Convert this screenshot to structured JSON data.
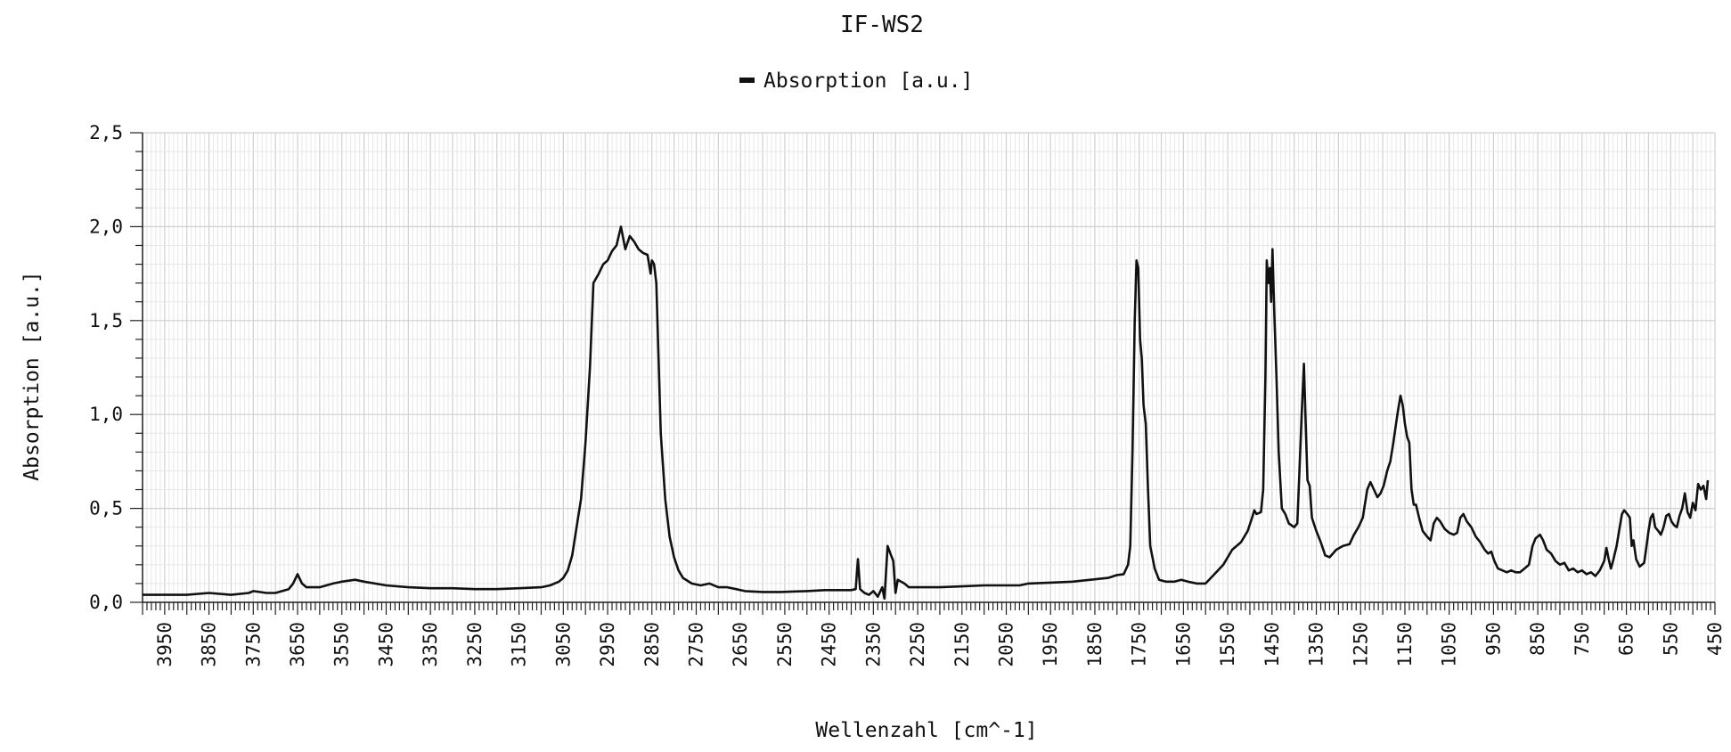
{
  "chart_data": {
    "type": "line",
    "title": "IF-WS2",
    "xlabel": "Wellenzahl [cm^-1]",
    "ylabel": "Absorption [a.u.]",
    "legend": {
      "position": "top-center",
      "entries": [
        "Absorption [a.u.]"
      ]
    },
    "x_reversed": true,
    "xlim": [
      4000,
      450
    ],
    "ylim": [
      0,
      2.5
    ],
    "grid": true,
    "x_ticks": [
      "3950",
      "3850",
      "3750",
      "3650",
      "3550",
      "3450",
      "3350",
      "3250",
      "3150",
      "3050",
      "2950",
      "2850",
      "2750",
      "2650",
      "2550",
      "2450",
      "2350",
      "2250",
      "2150",
      "2050",
      "1950",
      "1850",
      "1750",
      "1650",
      "1550",
      "1450",
      "1350",
      "1250",
      "1150",
      "1050",
      "950",
      "850",
      "750",
      "650",
      "550",
      "450"
    ],
    "y_ticks": [
      "0,0",
      "0,5",
      "1,0",
      "1,5",
      "2,0",
      "2,5"
    ],
    "series": [
      {
        "name": "Absorption [a.u.]",
        "color": "#111111",
        "points": [
          [
            4000,
            0.04
          ],
          [
            3950,
            0.04
          ],
          [
            3900,
            0.04
          ],
          [
            3850,
            0.05
          ],
          [
            3800,
            0.04
          ],
          [
            3760,
            0.05
          ],
          [
            3750,
            0.06
          ],
          [
            3720,
            0.05
          ],
          [
            3700,
            0.05
          ],
          [
            3670,
            0.07
          ],
          [
            3660,
            0.1
          ],
          [
            3650,
            0.15
          ],
          [
            3640,
            0.1
          ],
          [
            3630,
            0.08
          ],
          [
            3600,
            0.08
          ],
          [
            3570,
            0.1
          ],
          [
            3550,
            0.11
          ],
          [
            3520,
            0.12
          ],
          [
            3500,
            0.11
          ],
          [
            3450,
            0.09
          ],
          [
            3400,
            0.08
          ],
          [
            3350,
            0.075
          ],
          [
            3300,
            0.075
          ],
          [
            3250,
            0.07
          ],
          [
            3200,
            0.07
          ],
          [
            3150,
            0.075
          ],
          [
            3100,
            0.08
          ],
          [
            3080,
            0.09
          ],
          [
            3060,
            0.11
          ],
          [
            3050,
            0.13
          ],
          [
            3040,
            0.17
          ],
          [
            3030,
            0.25
          ],
          [
            3020,
            0.4
          ],
          [
            3010,
            0.55
          ],
          [
            3000,
            0.85
          ],
          [
            2990,
            1.25
          ],
          [
            2982,
            1.7
          ],
          [
            2970,
            1.75
          ],
          [
            2960,
            1.8
          ],
          [
            2950,
            1.82
          ],
          [
            2940,
            1.87
          ],
          [
            2930,
            1.9
          ],
          [
            2920,
            2.0
          ],
          [
            2910,
            1.88
          ],
          [
            2900,
            1.95
          ],
          [
            2890,
            1.92
          ],
          [
            2880,
            1.88
          ],
          [
            2870,
            1.86
          ],
          [
            2860,
            1.85
          ],
          [
            2853,
            1.75
          ],
          [
            2850,
            1.82
          ],
          [
            2845,
            1.8
          ],
          [
            2840,
            1.7
          ],
          [
            2835,
            1.3
          ],
          [
            2830,
            0.9
          ],
          [
            2820,
            0.55
          ],
          [
            2810,
            0.35
          ],
          [
            2800,
            0.24
          ],
          [
            2790,
            0.17
          ],
          [
            2780,
            0.13
          ],
          [
            2760,
            0.1
          ],
          [
            2740,
            0.09
          ],
          [
            2720,
            0.1
          ],
          [
            2700,
            0.08
          ],
          [
            2680,
            0.08
          ],
          [
            2660,
            0.07
          ],
          [
            2640,
            0.06
          ],
          [
            2600,
            0.055
          ],
          [
            2560,
            0.055
          ],
          [
            2500,
            0.06
          ],
          [
            2460,
            0.065
          ],
          [
            2420,
            0.065
          ],
          [
            2400,
            0.065
          ],
          [
            2390,
            0.07
          ],
          [
            2385,
            0.23
          ],
          [
            2380,
            0.07
          ],
          [
            2370,
            0.05
          ],
          [
            2360,
            0.04
          ],
          [
            2350,
            0.06
          ],
          [
            2340,
            0.03
          ],
          [
            2330,
            0.08
          ],
          [
            2325,
            0.02
          ],
          [
            2318,
            0.3
          ],
          [
            2310,
            0.25
          ],
          [
            2305,
            0.22
          ],
          [
            2300,
            0.05
          ],
          [
            2295,
            0.12
          ],
          [
            2280,
            0.1
          ],
          [
            2270,
            0.08
          ],
          [
            2250,
            0.08
          ],
          [
            2200,
            0.08
          ],
          [
            2150,
            0.085
          ],
          [
            2100,
            0.09
          ],
          [
            2050,
            0.09
          ],
          [
            2020,
            0.09
          ],
          [
            2000,
            0.1
          ],
          [
            1950,
            0.105
          ],
          [
            1900,
            0.11
          ],
          [
            1860,
            0.12
          ],
          [
            1820,
            0.13
          ],
          [
            1800,
            0.145
          ],
          [
            1785,
            0.15
          ],
          [
            1775,
            0.2
          ],
          [
            1770,
            0.3
          ],
          [
            1765,
            0.8
          ],
          [
            1760,
            1.5
          ],
          [
            1756,
            1.82
          ],
          [
            1752,
            1.78
          ],
          [
            1748,
            1.4
          ],
          [
            1744,
            1.3
          ],
          [
            1740,
            1.05
          ],
          [
            1735,
            0.95
          ],
          [
            1730,
            0.6
          ],
          [
            1725,
            0.3
          ],
          [
            1715,
            0.18
          ],
          [
            1705,
            0.12
          ],
          [
            1690,
            0.11
          ],
          [
            1670,
            0.11
          ],
          [
            1655,
            0.12
          ],
          [
            1640,
            0.11
          ],
          [
            1620,
            0.1
          ],
          [
            1600,
            0.1
          ],
          [
            1580,
            0.15
          ],
          [
            1560,
            0.2
          ],
          [
            1540,
            0.28
          ],
          [
            1520,
            0.32
          ],
          [
            1505,
            0.38
          ],
          [
            1495,
            0.45
          ],
          [
            1490,
            0.49
          ],
          [
            1485,
            0.47
          ],
          [
            1475,
            0.48
          ],
          [
            1470,
            0.6
          ],
          [
            1465,
            1.2
          ],
          [
            1462,
            1.82
          ],
          [
            1458,
            1.7
          ],
          [
            1455,
            1.78
          ],
          [
            1452,
            1.6
          ],
          [
            1449,
            1.88
          ],
          [
            1445,
            1.55
          ],
          [
            1440,
            1.2
          ],
          [
            1435,
            0.8
          ],
          [
            1428,
            0.5
          ],
          [
            1420,
            0.47
          ],
          [
            1412,
            0.42
          ],
          [
            1400,
            0.4
          ],
          [
            1393,
            0.42
          ],
          [
            1388,
            0.7
          ],
          [
            1383,
            1.0
          ],
          [
            1378,
            1.27
          ],
          [
            1374,
            0.95
          ],
          [
            1370,
            0.65
          ],
          [
            1365,
            0.62
          ],
          [
            1360,
            0.45
          ],
          [
            1350,
            0.38
          ],
          [
            1340,
            0.32
          ],
          [
            1330,
            0.25
          ],
          [
            1320,
            0.24
          ],
          [
            1305,
            0.28
          ],
          [
            1290,
            0.3
          ],
          [
            1275,
            0.31
          ],
          [
            1265,
            0.36
          ],
          [
            1255,
            0.4
          ],
          [
            1245,
            0.45
          ],
          [
            1235,
            0.6
          ],
          [
            1228,
            0.64
          ],
          [
            1220,
            0.6
          ],
          [
            1212,
            0.56
          ],
          [
            1205,
            0.58
          ],
          [
            1198,
            0.62
          ],
          [
            1190,
            0.7
          ],
          [
            1183,
            0.75
          ],
          [
            1176,
            0.85
          ],
          [
            1170,
            0.95
          ],
          [
            1165,
            1.03
          ],
          [
            1160,
            1.1
          ],
          [
            1155,
            1.05
          ],
          [
            1150,
            0.95
          ],
          [
            1145,
            0.88
          ],
          [
            1140,
            0.85
          ],
          [
            1135,
            0.6
          ],
          [
            1130,
            0.52
          ],
          [
            1125,
            0.52
          ],
          [
            1118,
            0.45
          ],
          [
            1110,
            0.38
          ],
          [
            1100,
            0.35
          ],
          [
            1092,
            0.33
          ],
          [
            1085,
            0.42
          ],
          [
            1078,
            0.45
          ],
          [
            1070,
            0.43
          ],
          [
            1060,
            0.39
          ],
          [
            1050,
            0.37
          ],
          [
            1040,
            0.36
          ],
          [
            1032,
            0.37
          ],
          [
            1025,
            0.45
          ],
          [
            1018,
            0.47
          ],
          [
            1010,
            0.43
          ],
          [
            1000,
            0.4
          ],
          [
            990,
            0.35
          ],
          [
            980,
            0.32
          ],
          [
            970,
            0.28
          ],
          [
            962,
            0.26
          ],
          [
            955,
            0.27
          ],
          [
            948,
            0.22
          ],
          [
            940,
            0.18
          ],
          [
            930,
            0.17
          ],
          [
            920,
            0.16
          ],
          [
            910,
            0.17
          ],
          [
            900,
            0.16
          ],
          [
            890,
            0.16
          ],
          [
            880,
            0.18
          ],
          [
            870,
            0.2
          ],
          [
            862,
            0.3
          ],
          [
            855,
            0.34
          ],
          [
            845,
            0.36
          ],
          [
            838,
            0.33
          ],
          [
            830,
            0.28
          ],
          [
            820,
            0.26
          ],
          [
            810,
            0.22
          ],
          [
            800,
            0.2
          ],
          [
            790,
            0.21
          ],
          [
            780,
            0.17
          ],
          [
            770,
            0.18
          ],
          [
            760,
            0.16
          ],
          [
            750,
            0.17
          ],
          [
            740,
            0.15
          ],
          [
            730,
            0.16
          ],
          [
            720,
            0.14
          ],
          [
            710,
            0.17
          ],
          [
            700,
            0.22
          ],
          [
            695,
            0.29
          ],
          [
            690,
            0.23
          ],
          [
            685,
            0.18
          ],
          [
            680,
            0.22
          ],
          [
            672,
            0.3
          ],
          [
            665,
            0.4
          ],
          [
            660,
            0.47
          ],
          [
            655,
            0.49
          ],
          [
            648,
            0.47
          ],
          [
            642,
            0.45
          ],
          [
            638,
            0.3
          ],
          [
            634,
            0.33
          ],
          [
            628,
            0.23
          ],
          [
            620,
            0.19
          ],
          [
            610,
            0.21
          ],
          [
            605,
            0.29
          ],
          [
            600,
            0.38
          ],
          [
            595,
            0.45
          ],
          [
            590,
            0.47
          ],
          [
            585,
            0.4
          ],
          [
            578,
            0.38
          ],
          [
            572,
            0.36
          ],
          [
            566,
            0.4
          ],
          [
            560,
            0.46
          ],
          [
            554,
            0.47
          ],
          [
            548,
            0.43
          ],
          [
            542,
            0.41
          ],
          [
            536,
            0.4
          ],
          [
            530,
            0.46
          ],
          [
            524,
            0.5
          ],
          [
            518,
            0.58
          ],
          [
            512,
            0.48
          ],
          [
            506,
            0.45
          ],
          [
            500,
            0.53
          ],
          [
            494,
            0.49
          ],
          [
            488,
            0.63
          ],
          [
            482,
            0.6
          ],
          [
            476,
            0.62
          ],
          [
            470,
            0.55
          ],
          [
            466,
            0.65
          ]
        ]
      }
    ]
  }
}
